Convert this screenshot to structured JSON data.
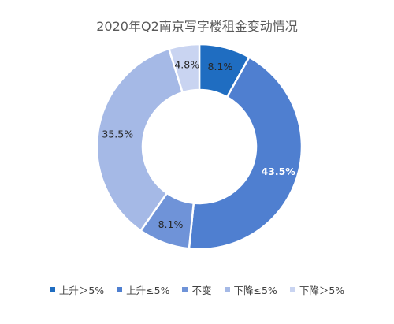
{
  "chart_data": {
    "type": "pie",
    "title": "2020年Q2南京写字楼租金变动情况",
    "categories": [
      "上升＞5%",
      "上升≤5%",
      "不变",
      "下降≤5%",
      "下降＞5%"
    ],
    "values": [
      8.1,
      43.5,
      8.1,
      35.5,
      4.8
    ],
    "labels": [
      "8.1%",
      "43.5%",
      "8.1%",
      "35.5%",
      "4.8%"
    ],
    "colors": [
      "#1f6dc1",
      "#4f7fd0",
      "#6f93d8",
      "#a5b9e6",
      "#c9d4f1"
    ],
    "label_colors": [
      "#262626",
      "#ffffff",
      "#262626",
      "#262626",
      "#262626"
    ],
    "legend_position": "bottom"
  }
}
